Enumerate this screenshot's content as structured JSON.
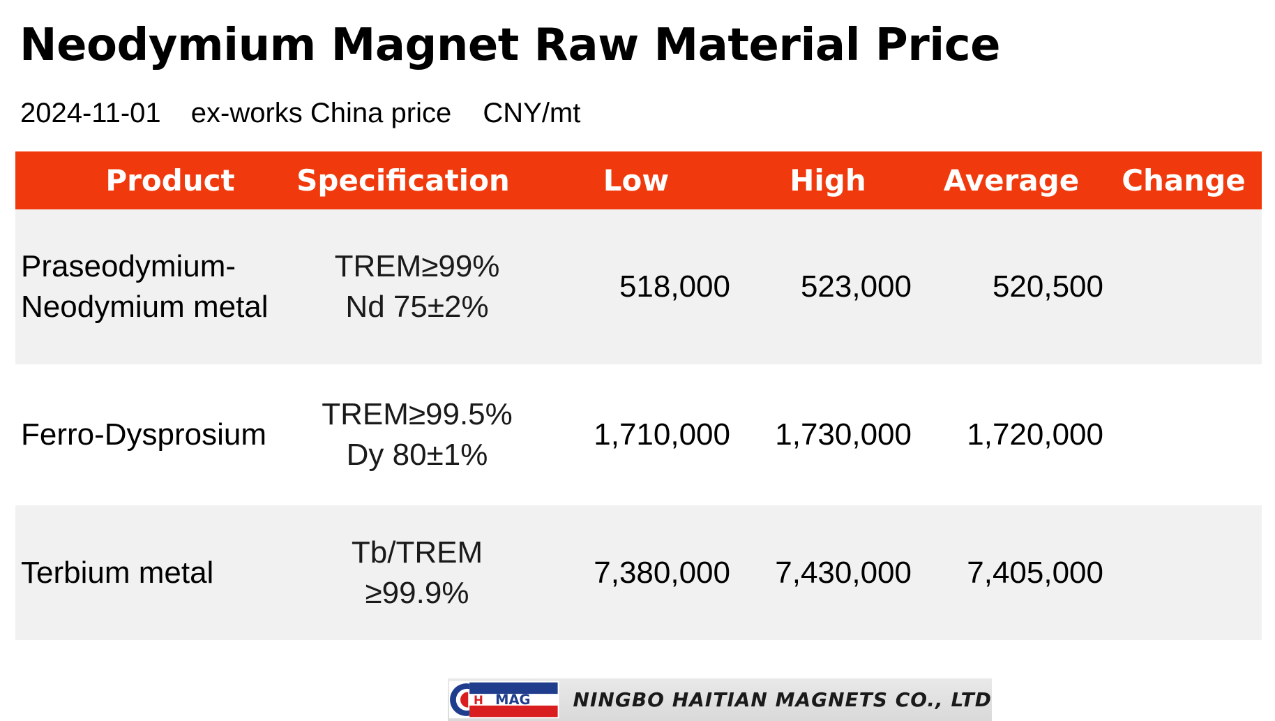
{
  "title": "Neodymium Magnet Raw Material Price",
  "subtitle": {
    "date": "2024-11-01",
    "basis": "ex-works China price",
    "unit": "CNY/mt"
  },
  "table": {
    "headers": [
      "Product",
      "Specification",
      "Low",
      "High",
      "Average",
      "Change"
    ],
    "rows": [
      {
        "product_lines": [
          "Praseodymium-",
          "Neodymium metal"
        ],
        "spec_lines": [
          "TREM≥99%",
          "Nd 75±2%"
        ],
        "low": "518,000",
        "high": "523,000",
        "average": "520,500",
        "change": ""
      },
      {
        "product_lines": [
          "Ferro-Dysprosium"
        ],
        "spec_lines": [
          "TREM≥99.5%",
          "Dy 80±1%"
        ],
        "low": "1,710,000",
        "high": "1,730,000",
        "average": "1,720,000",
        "change": ""
      },
      {
        "product_lines": [
          "Terbium metal"
        ],
        "spec_lines": [
          "Tb/TREM",
          "≥99.9%"
        ],
        "low": "7,380,000",
        "high": "7,430,000",
        "average": "7,405,000",
        "change": ""
      }
    ]
  },
  "footer": {
    "logo_text_left": "H",
    "logo_text_right": "MAG",
    "company": "NINGBO HAITIAN MAGNETS CO., LTD"
  },
  "colors": {
    "header_bg": "#f03a0d",
    "header_text": "#ffffff",
    "row_shade": "#f1f1f1"
  }
}
